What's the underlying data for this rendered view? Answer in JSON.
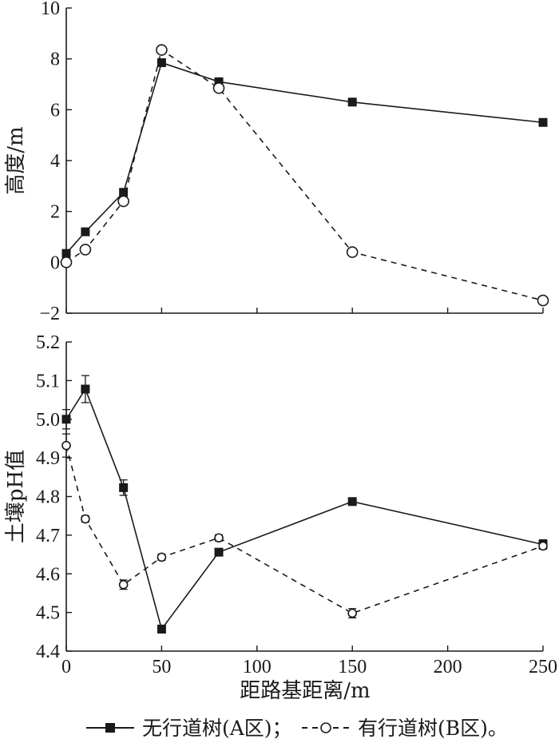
{
  "chart_data": [
    {
      "type": "line",
      "ylabel": "高度/m",
      "ylim": [
        -2,
        10
      ],
      "yticks": [
        "−2",
        "0",
        "2",
        "4",
        "6",
        "8",
        "10"
      ],
      "x": [
        0,
        10,
        30,
        50,
        80,
        150,
        250
      ],
      "series": [
        {
          "name": "无行道树(A区)",
          "style": "solid",
          "marker": "filled-square",
          "color": "#1a1a1a",
          "values": [
            0.35,
            1.2,
            2.75,
            7.85,
            7.1,
            6.3,
            5.5
          ]
        },
        {
          "name": "有行道树(B区)",
          "style": "dashed",
          "marker": "open-circle",
          "color": "#1a1a1a",
          "values": [
            0.0,
            0.5,
            2.4,
            8.35,
            6.85,
            0.4,
            -1.5
          ]
        }
      ]
    },
    {
      "type": "line",
      "ylabel": "土壤pH值",
      "ylim": [
        4.4,
        5.2
      ],
      "yticks": [
        "4.4",
        "4.5",
        "4.6",
        "4.7",
        "4.8",
        "4.9",
        "5.0",
        "5.1",
        "5.2"
      ],
      "xlabel": "距路基距离/m",
      "xlim": [
        0,
        250
      ],
      "xticks": [
        "0",
        "50",
        "100",
        "150",
        "200",
        "250"
      ],
      "x": [
        0,
        10,
        30,
        50,
        80,
        150,
        250
      ],
      "series": [
        {
          "name": "无行道树(A区)",
          "style": "solid",
          "marker": "filled-square",
          "color": "#1a1a1a",
          "values": [
            5.0,
            5.078,
            4.823,
            4.457,
            4.656,
            4.787,
            4.676
          ],
          "errors": [
            0.025,
            0.035,
            0.02,
            0.01,
            0.008,
            0.008,
            0.012
          ]
        },
        {
          "name": "有行道树(B区)",
          "style": "dashed",
          "marker": "open-circle",
          "color": "#1a1a1a",
          "values": [
            4.932,
            4.742,
            4.572,
            4.643,
            4.693,
            4.498,
            4.672
          ],
          "errors": [
            0.03,
            0.008,
            0.012,
            0.008,
            0.008,
            0.012,
            0.008
          ]
        }
      ]
    }
  ],
  "legend": {
    "items": [
      {
        "label": "无行道树(A区)；",
        "marker": "filled-square",
        "style": "solid"
      },
      {
        "label": "有行道树(B区)。",
        "marker": "open-circle",
        "style": "dashed"
      }
    ]
  }
}
